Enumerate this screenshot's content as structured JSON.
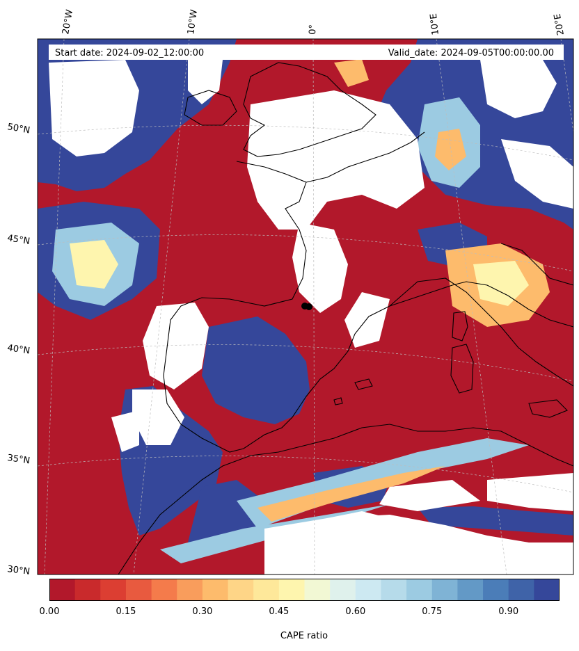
{
  "map": {
    "start_date": "Start date: 2024-09-02_12:00:00",
    "valid_date": "Valid_date: 2024-09-05T00:00:00.00",
    "lon_labels": [
      "20°W",
      "10°W",
      "0°",
      "10°E",
      "20°E"
    ],
    "lat_labels": [
      "50°N",
      "45°N",
      "40°N",
      "35°N",
      "30°N"
    ]
  },
  "colorbar": {
    "label": "CAPE ratio",
    "ticks": [
      "0.00",
      "0.15",
      "0.30",
      "0.45",
      "0.60",
      "0.75",
      "0.90"
    ],
    "tick_values": [
      0.0,
      0.15,
      0.3,
      0.45,
      0.6,
      0.75,
      0.9
    ],
    "vmin": 0.0,
    "vmax": 1.0,
    "colors": [
      "#b2182b",
      "#c92a2c",
      "#dc3e32",
      "#e85a3f",
      "#f47b4b",
      "#f99d5c",
      "#fdbb6c",
      "#fed587",
      "#fee89a",
      "#fef5ae",
      "#f2f8d4",
      "#dff1ec",
      "#cde9f2",
      "#b6dbea",
      "#9ccbe2",
      "#7fb3d5",
      "#6399c6",
      "#4b7db8",
      "#3f63a8",
      "#35479a"
    ]
  },
  "field_colors": {
    "low": "#b2182b",
    "high": "#35479a",
    "mid_warm": "#fdbb6c",
    "mid_light": "#fef5ae",
    "mid_cool": "#9ccbe2"
  }
}
